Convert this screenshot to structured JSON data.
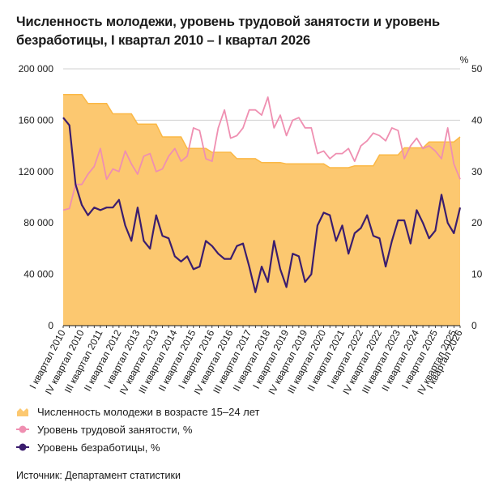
{
  "title": "Численность молодежи, уровень трудовой занятости и уровень безработицы, I квартал 2010 – I квартал 2026",
  "source": "Источник: Департамент статистики",
  "chart_data": {
    "type": "area+line",
    "left_axis": {
      "ticks": [
        "0",
        "40 000",
        "80 000",
        "120 000",
        "160 000",
        "200 000"
      ],
      "ylim": [
        0,
        200000
      ]
    },
    "right_axis": {
      "label": "%",
      "ticks": [
        "0",
        "10",
        "20",
        "30",
        "40",
        "50"
      ],
      "ylim": [
        0,
        50
      ]
    },
    "x_tick_labels": [
      "I квартал 2010",
      "IV квартал 2010",
      "III квартал 2011",
      "II квартал 2012",
      "I квартал 2013",
      "IV квартал 2013",
      "III квартал 2014",
      "II квартал 2015",
      "I квартал 2016",
      "IV квартал 2016",
      "III квартал 2017",
      "II квартал 2018",
      "I квартал 2019",
      "IV квартал 2019",
      "III квартал 2020",
      "II квартал 2021",
      "I квартал 2022",
      "IV квартал 2022",
      "III квартал 2023",
      "II квартал 2024",
      "I квартал 2025",
      "IV квартал 2025",
      "I квартал 2026"
    ],
    "x_tick_index": [
      0,
      3,
      6,
      9,
      12,
      15,
      18,
      21,
      24,
      27,
      30,
      33,
      36,
      39,
      42,
      45,
      48,
      51,
      54,
      57,
      60,
      63,
      64
    ],
    "series": [
      {
        "name": "Численность молодежи в возрасте 15–24 лет",
        "axis": "left",
        "color": "#fcc870",
        "values": [
          180000,
          180000,
          180000,
          180000,
          173000,
          173000,
          173000,
          173000,
          165000,
          165000,
          165000,
          165000,
          157000,
          157000,
          157000,
          157000,
          147000,
          147000,
          147000,
          147000,
          138000,
          138000,
          138000,
          138000,
          135000,
          135000,
          135000,
          135000,
          130000,
          130000,
          130000,
          130000,
          127000,
          127000,
          127000,
          127000,
          126000,
          126000,
          126000,
          126000,
          126000,
          126000,
          126000,
          123000,
          123000,
          123000,
          123000,
          124500,
          124500,
          124500,
          124500,
          133000,
          133000,
          133000,
          133000,
          138500,
          138500,
          138500,
          138500,
          143000,
          143000,
          143000,
          143000,
          143000,
          147000
        ]
      },
      {
        "name": "Уровень трудовой занятости, %",
        "axis": "right",
        "color": "#ef8fb1",
        "values": [
          22.5,
          22.8,
          27.5,
          27.5,
          29.5,
          31.0,
          34.5,
          28.5,
          30.5,
          30.0,
          34.0,
          31.5,
          29.5,
          33.0,
          33.5,
          30.0,
          30.5,
          33.0,
          34.5,
          32.0,
          33.0,
          38.5,
          38.0,
          32.5,
          32.0,
          38.5,
          42.0,
          36.5,
          37.0,
          38.5,
          42.0,
          42.0,
          41.0,
          44.5,
          38.5,
          41.0,
          37.0,
          40.0,
          40.5,
          38.5,
          38.5,
          33.5,
          34.0,
          32.5,
          33.5,
          33.5,
          34.5,
          32.0,
          35.0,
          36.0,
          37.5,
          37.0,
          36.0,
          38.5,
          38.0,
          32.5,
          35.0,
          36.5,
          34.5,
          35.0,
          34.0,
          32.5,
          38.5,
          31.5,
          28.5
        ]
      },
      {
        "name": "Уровень безработицы, %",
        "axis": "right",
        "color": "#3b1d6e",
        "values": [
          40.5,
          39.0,
          27.5,
          23.5,
          21.5,
          23.0,
          22.5,
          23.0,
          23.0,
          24.5,
          19.5,
          16.5,
          23.0,
          16.5,
          15.0,
          21.5,
          17.5,
          17.0,
          13.5,
          12.5,
          13.5,
          11.0,
          11.5,
          16.5,
          15.5,
          14.0,
          13.0,
          13.0,
          15.5,
          16.0,
          11.5,
          6.5,
          11.5,
          8.5,
          16.5,
          11.0,
          7.5,
          14.0,
          13.5,
          8.5,
          10.0,
          19.5,
          22.0,
          21.5,
          16.5,
          19.5,
          14.0,
          18.0,
          19.0,
          21.5,
          17.5,
          17.0,
          11.5,
          16.5,
          20.5,
          20.5,
          16.0,
          22.5,
          20.0,
          17.0,
          18.5,
          25.5,
          20.0,
          18.0,
          23.0
        ]
      }
    ]
  }
}
